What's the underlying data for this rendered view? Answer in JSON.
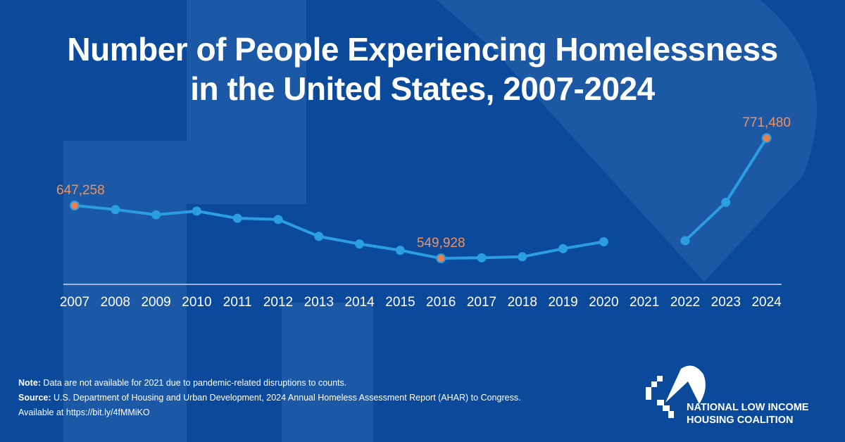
{
  "title_line1": "Number of People Experiencing Homelessness",
  "title_line2": "in the United States, 2007-2024",
  "chart_data": {
    "type": "line",
    "title": "Number of People Experiencing Homelessness in the United States, 2007-2024",
    "categories": [
      "2007",
      "2008",
      "2009",
      "2010",
      "2011",
      "2012",
      "2013",
      "2014",
      "2015",
      "2016",
      "2017",
      "2018",
      "2019",
      "2020",
      "2021",
      "2022",
      "2023",
      "2024"
    ],
    "values": [
      647258,
      639784,
      630227,
      637077,
      623788,
      621553,
      590364,
      576450,
      564708,
      549928,
      550996,
      552830,
      567715,
      580466,
      null,
      582462,
      653104,
      771480
    ],
    "labeled_points": [
      {
        "x": "2007",
        "label": "647,258"
      },
      {
        "x": "2016",
        "label": "549,928"
      },
      {
        "x": "2024",
        "label": "771,480"
      }
    ],
    "line_color": "#2a9ee0",
    "highlight_color": "#e8804f",
    "grid": false,
    "y_axis_shown": false
  },
  "note_label": "Note:",
  "note_text": " Data are not available for 2021 due to pandemic-related disruptions to counts.",
  "source_label": "Source:",
  "source_text": " U.S. Department of Housing and Urban Development, 2024 Annual Homeless Assessment Report (AHAR) to Congress.",
  "available_text": "Available at https://bit.ly/4fMMiKO",
  "logo": {
    "line1": "NATIONAL LOW INCOME",
    "line2": "HOUSING COALITION"
  },
  "colors": {
    "background": "#0b4a9b",
    "label": "#f0905a"
  }
}
